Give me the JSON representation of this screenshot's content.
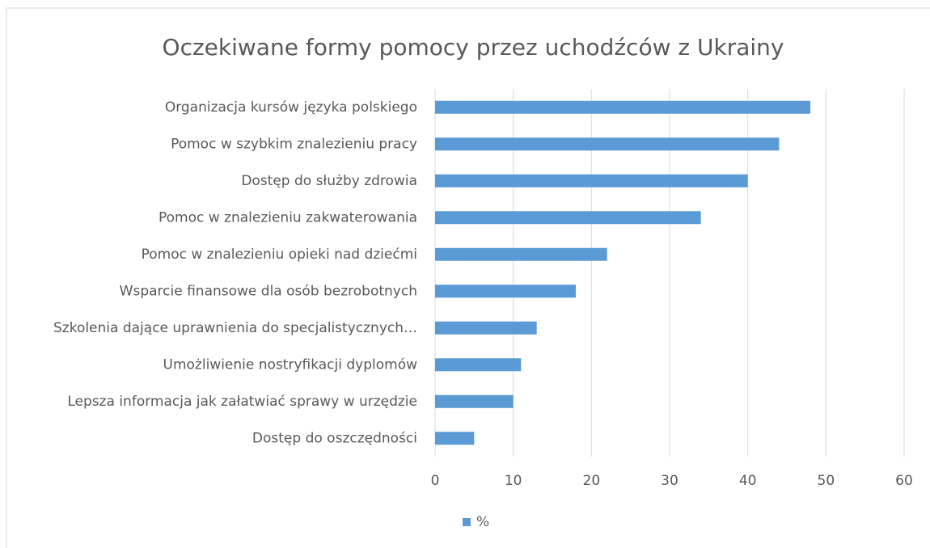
{
  "chart_data": {
    "type": "bar",
    "orientation": "horizontal",
    "title": "Oczekiwane formy pomocy przez uchodźców z Ukrainy",
    "categories": [
      "Organizacja kursów języka polskiego",
      "Pomoc w szybkim znalezieniu pracy",
      "Dostęp do służby zdrowia",
      "Pomoc w znalezieniu zakwaterowania",
      "Pomoc w znalezieniu opieki nad dziećmi",
      "Wsparcie finansowe dla osób bezrobotnych",
      "Szkolenia dające uprawnienia do specjalistycznych…",
      "Umożliwienie nostryfikacji dyplomów",
      "Lepsza informacja jak załatwiać sprawy w urzędzie",
      "Dostęp do oszczędności"
    ],
    "series": [
      {
        "name": "%",
        "color": "#5b9bd5",
        "values": [
          48,
          44,
          40,
          34,
          22,
          18,
          13,
          11,
          10,
          5
        ]
      }
    ],
    "xlim": [
      0,
      60
    ],
    "xticks": [
      0,
      10,
      20,
      30,
      40,
      50,
      60
    ],
    "grid": true,
    "legend": "bottom"
  }
}
